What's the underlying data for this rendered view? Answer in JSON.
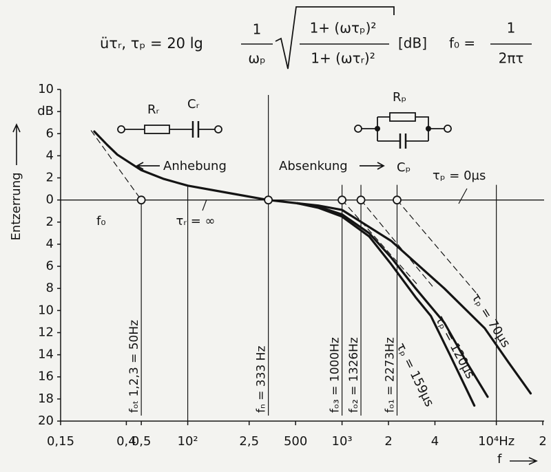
{
  "chart_data": {
    "type": "line",
    "formula": {
      "lhs": "üτᵣ, τₚ = 20 lg",
      "frac1_num": "1",
      "frac1_den": "ωₚ",
      "frac2_num": "1+ (ωτₚ)²",
      "frac2_den": "1+ (ωτᵣ)²",
      "unit": "[dB]",
      "f0_lhs": "f₀ =",
      "f0_num": "1",
      "f0_den": "2πτ"
    },
    "y_label": "Entzerrung",
    "x_label": "f",
    "xlim": [
      15,
      20400
    ],
    "log_x": true,
    "xticks": [
      {
        "value": 15,
        "label": "0,15"
      },
      {
        "value": 40,
        "label": "0,4"
      },
      {
        "value": 50,
        "label": "0,5"
      },
      {
        "value": 100,
        "label": "10²"
      },
      {
        "value": 250,
        "label": "2,5"
      },
      500,
      {
        "value": 1000,
        "label": "10³"
      },
      {
        "value": 2000,
        "label": "2"
      },
      {
        "value": 4000,
        "label": "4"
      },
      {
        "value": 10000,
        "label": "10⁴Hz"
      },
      {
        "value": 20000,
        "label": "2"
      }
    ],
    "ylim": [
      -20,
      10
    ],
    "yticks": [
      10,
      {
        "value": 8,
        "label": "dB"
      },
      6,
      4,
      2,
      0,
      {
        "value": -2,
        "label": "2"
      },
      {
        "value": -4,
        "label": "4"
      },
      {
        "value": -6,
        "label": "6"
      },
      {
        "value": -8,
        "label": "8"
      },
      {
        "value": -10,
        "label": "10"
      },
      {
        "value": -12,
        "label": "12"
      },
      {
        "value": -14,
        "label": "14"
      },
      {
        "value": -16,
        "label": "16"
      },
      {
        "value": -18,
        "label": "18"
      },
      {
        "value": -20,
        "label": "20"
      }
    ],
    "color": "#141414",
    "series": [
      {
        "name": "τᵣ = ∞",
        "color": "#141414",
        "x": [
          24.8,
          30,
          35,
          50,
          70,
          100,
          190,
          333,
          516
        ],
        "values": [
          6.2,
          5.0,
          4.1,
          2.7,
          1.9,
          1.3,
          0.6,
          0,
          -0.3
        ]
      },
      {
        "name": "τₚ = 159µs",
        "color": "#141414",
        "x": [
          516,
          700,
          1000,
          1500,
          2080,
          3000,
          3770,
          5000,
          7200
        ],
        "values": [
          -0.3,
          -0.7,
          -1.5,
          -3.3,
          -5.8,
          -8.8,
          -10.5,
          -14,
          -18.6
        ]
      },
      {
        "name": "τₚ = 120µs",
        "color": "#141414",
        "x": [
          516,
          700,
          1000,
          1500,
          2080,
          3000,
          4600,
          6500,
          8780
        ],
        "values": [
          -0.3,
          -0.6,
          -1.3,
          -3,
          -5.2,
          -8,
          -11.1,
          -14.8,
          -17.8
        ]
      },
      {
        "name": "τₚ = 70µs",
        "color": "#141414",
        "x": [
          516,
          700,
          1000,
          2080,
          4600,
          8400,
          12000,
          16700
        ],
        "values": [
          -0.3,
          -0.5,
          -0.9,
          -3.7,
          -8.0,
          -11.6,
          -14.7,
          -17.5
        ]
      }
    ],
    "asymptotes": [
      {
        "x": [
          23.6,
          50
        ],
        "values": [
          6.3,
          0
        ]
      },
      {
        "x": [
          1000,
          3100
        ],
        "values": [
          0,
          -7.7
        ]
      },
      {
        "x": [
          1326,
          3960
        ],
        "values": [
          0,
          -8
        ]
      },
      {
        "x": [
          2273,
          7600
        ],
        "values": [
          0,
          -8.6
        ]
      }
    ],
    "markers": [
      {
        "x": 50,
        "label": "fₒₜ 1,2,3 = 50Hz"
      },
      {
        "x": 333,
        "label": "fₙ = 333 Hz"
      },
      {
        "x": 1000,
        "label": "fₒ₃ = 1000Hz"
      },
      {
        "x": 1326,
        "label": "fₒ₂ = 1326Hz"
      },
      {
        "x": 2273,
        "label": "fₒ₁ = 2273Hz"
      }
    ],
    "vlines": [
      100,
      10000
    ],
    "annotations": {
      "f0": "f₀",
      "tau_p0": "τₚ = 0µs",
      "boost": "Anhebung",
      "cut": "Absenkung",
      "Rr": "Rᵣ",
      "Cr": "Cᵣ",
      "Rp": "Rₚ",
      "Cp": "Cₚ"
    }
  }
}
